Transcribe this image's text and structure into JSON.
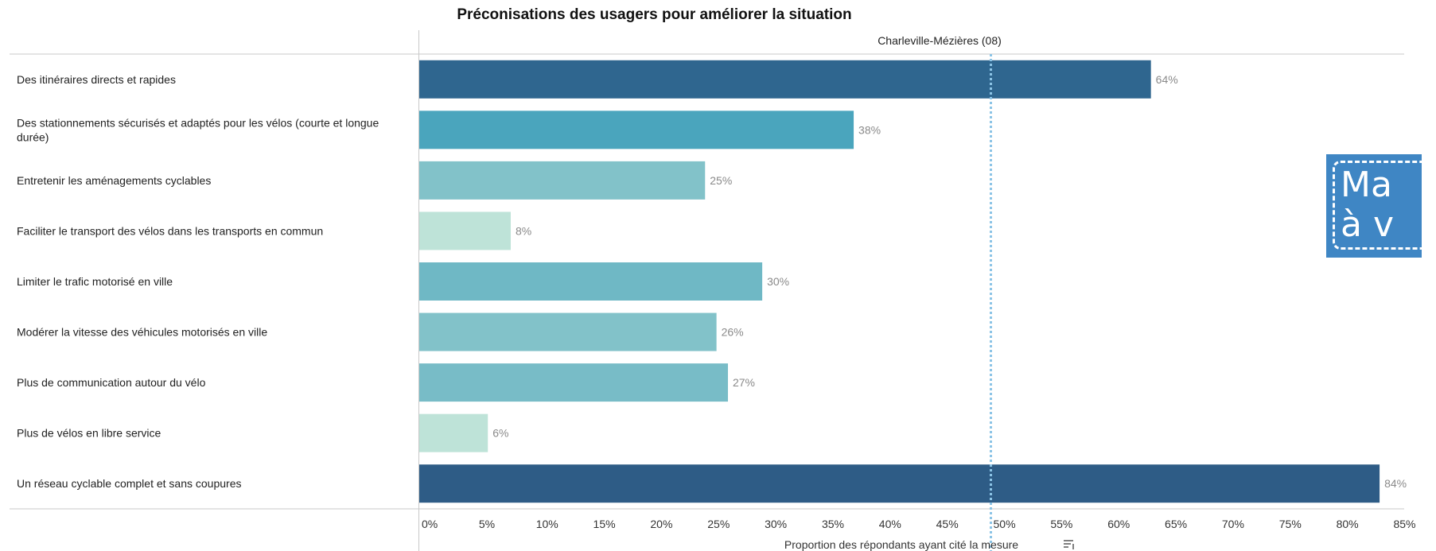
{
  "chart_data": {
    "type": "bar",
    "orientation": "horizontal",
    "title": "Préconisations des usagers pour améliorer la situation",
    "facet": "Charleville-Mézières (08)",
    "xlabel": "Proportion des répondants ayant cité la mesure",
    "xlim": [
      0,
      85
    ],
    "xticks": [
      "0%",
      "5%",
      "10%",
      "15%",
      "20%",
      "25%",
      "30%",
      "35%",
      "40%",
      "45%",
      "50%",
      "55%",
      "60%",
      "65%",
      "70%",
      "75%",
      "80%",
      "85%"
    ],
    "reference_line": 50,
    "categories": [
      "Des itinéraires directs et rapides",
      "Des stationnements sécurisés et adaptés pour les vélos (courte et longue durée)",
      "Entretenir les aménagements cyclables",
      "Faciliter le transport des vélos dans les transports en commun",
      "Limiter le trafic motorisé en ville",
      "Modérer la vitesse des véhicules motorisés en ville",
      "Plus de communication autour du vélo",
      "Plus de vélos en libre service",
      "Un réseau cyclable complet et sans coupures"
    ],
    "values": [
      64,
      38,
      25,
      8,
      30,
      26,
      27,
      6,
      84
    ],
    "value_labels": [
      "64%",
      "38%",
      "25%",
      "8%",
      "30%",
      "26%",
      "27%",
      "6%",
      "84%"
    ],
    "colors": [
      "#2f668f",
      "#4aa5bd",
      "#82c2c9",
      "#bee3d8",
      "#6fb8c5",
      "#82c2c9",
      "#78bcc7",
      "#bee3d8",
      "#2e5c86"
    ],
    "reference_color": "#8cc4e6",
    "sort_icon": "sort-icon"
  },
  "overlay": {
    "text": "Ma\nà v",
    "color": "#3f86c4"
  }
}
